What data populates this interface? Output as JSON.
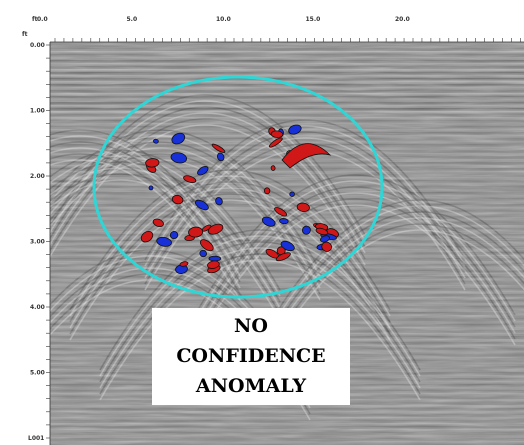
{
  "x_axis": {
    "unit": "ft",
    "ticks": [
      "0.0",
      "5.0",
      "10.0",
      "15.0",
      "20.0"
    ]
  },
  "y_axis": {
    "unit": "ft",
    "ticks": [
      "0.00",
      "1.00",
      "2.00",
      "3.00",
      "4.00",
      "5.00"
    ]
  },
  "file_label": "L001",
  "annotation": {
    "lines": [
      "NO",
      "CONFIDENCE",
      "ANOMALY"
    ]
  }
}
